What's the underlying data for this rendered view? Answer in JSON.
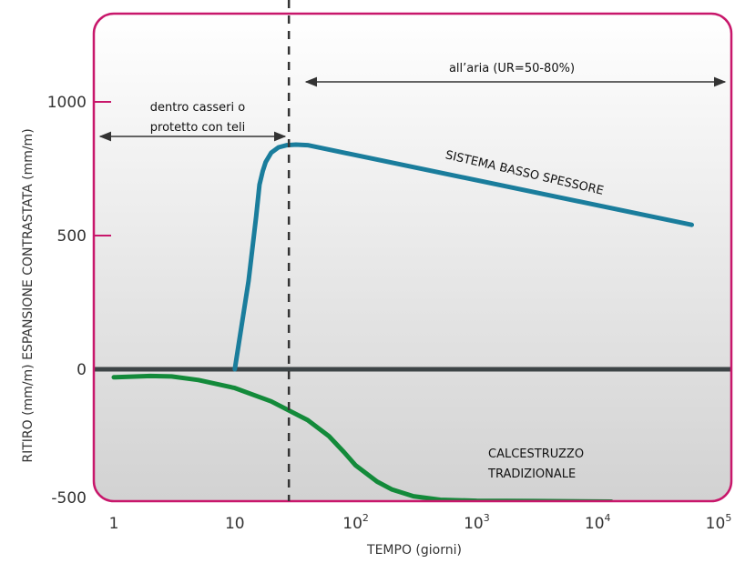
{
  "chart_data": {
    "type": "line",
    "xlabel": "TEMPO (giorni)",
    "ylabel": "RITIRO (mm/m) ESPANSIONE CONTRASTATA (mm/m)",
    "xscale": "log",
    "xlim": [
      1,
      100000
    ],
    "ylim": [
      -500,
      1000
    ],
    "x_ticks": [
      {
        "base": "1",
        "exp": ""
      },
      {
        "base": "10",
        "exp": ""
      },
      {
        "base": "10",
        "exp": "2"
      },
      {
        "base": "10",
        "exp": "3"
      },
      {
        "base": "10",
        "exp": "4"
      },
      {
        "base": "10",
        "exp": "5"
      }
    ],
    "y_ticks": [
      "1000",
      "500",
      "0",
      "-500"
    ],
    "series": [
      {
        "name": "SISTEMA BASSO SPESSORE",
        "color": "#1a7d9c",
        "x": [
          10,
          13,
          15,
          16,
          17,
          18,
          20,
          23,
          27,
          32,
          40,
          60000
        ],
        "y": [
          0,
          330,
          570,
          690,
          740,
          775,
          810,
          830,
          838,
          840,
          838,
          540
        ]
      },
      {
        "name": "CALCESTRUZZO TRADIZIONALE",
        "color": "#138a3a",
        "x": [
          1,
          2,
          3,
          5,
          10,
          20,
          40,
          60,
          80,
          100,
          150,
          200,
          300,
          500,
          1000,
          3000,
          13000
        ],
        "y": [
          -30,
          -25,
          -27,
          -40,
          -70,
          -120,
          -190,
          -250,
          -310,
          -360,
          -420,
          -450,
          -475,
          -488,
          -492,
          -493,
          -495
        ]
      }
    ],
    "annotations": [
      {
        "lines": [
          "dentro casseri o",
          "protetto con teli"
        ],
        "x_from": 1,
        "x_to": 28
      },
      {
        "lines": [
          "all’aria (UR=50-80%)"
        ],
        "x_from": 28,
        "x_to": 100000
      }
    ],
    "vline_x": 28,
    "colors": {
      "frame": "#c8176b",
      "zero_line": "#3d4446"
    }
  }
}
